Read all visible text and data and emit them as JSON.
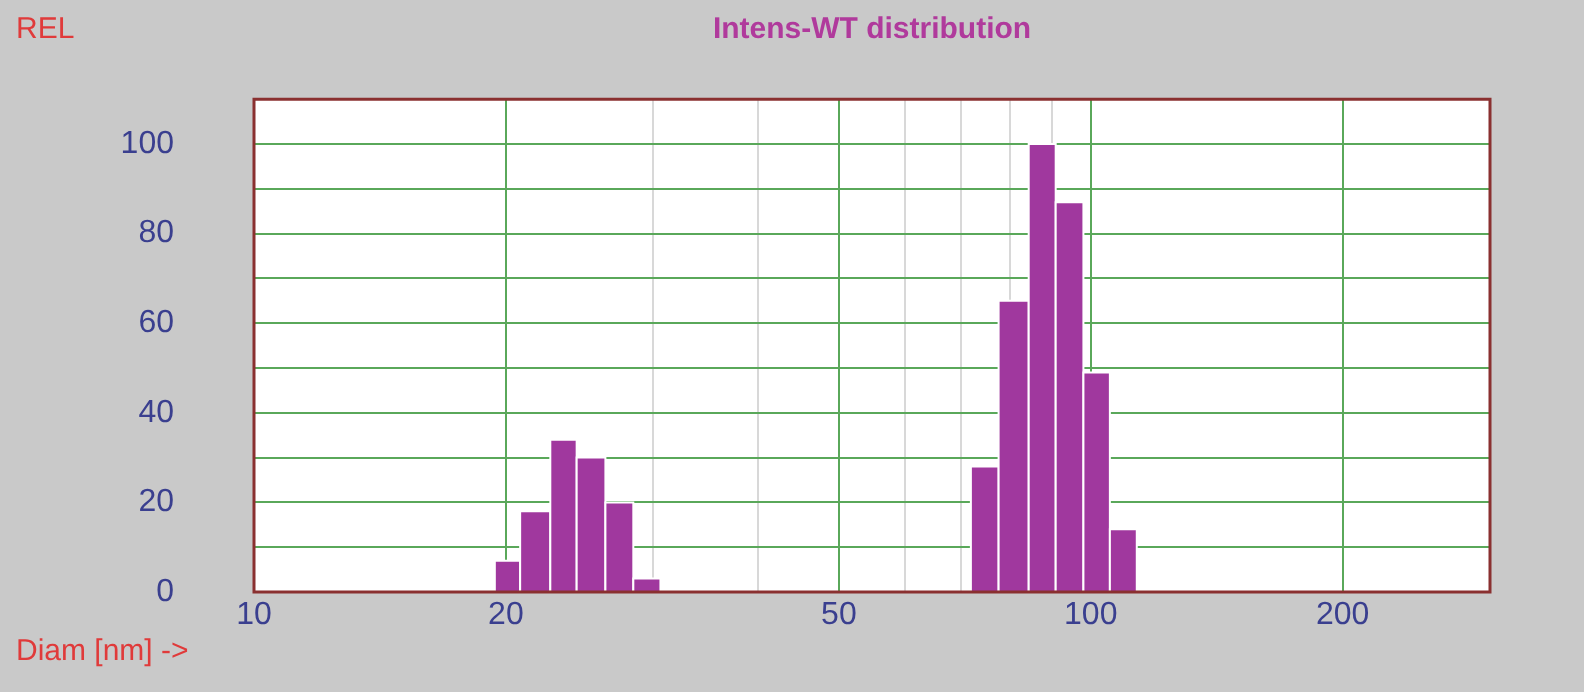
{
  "chart_data": {
    "type": "histogram",
    "title": "Intens-WT distribution",
    "xlabel": "Diam [nm] ->",
    "ylabel": "REL",
    "bins": [
      19.4,
      20.8,
      22.6,
      24.3,
      26.3,
      28.4,
      30.6,
      71.9,
      77.6,
      84.3,
      90.8,
      98,
      105.4,
      113.5
    ],
    "values": [
      7,
      18,
      34,
      30,
      20,
      3,
      0,
      28,
      65,
      100,
      87,
      49,
      14
    ],
    "color": "#a0389e",
    "log": "x",
    "xlim": [
      10,
      300
    ],
    "xticks": [
      10,
      20,
      {
        "value": 30,
        "label": null
      },
      {
        "value": 40,
        "label": null
      },
      50,
      {
        "value": 60,
        "label": null
      },
      {
        "value": 70,
        "label": null
      },
      {
        "value": 80,
        "label": null
      },
      {
        "value": 90,
        "label": null
      },
      100,
      200
    ],
    "ylim": [
      0,
      110
    ],
    "yticks": [
      0,
      {
        "value": 10,
        "label": null
      },
      20,
      {
        "value": 30,
        "label": null
      },
      40,
      {
        "value": 50,
        "label": null
      },
      60,
      {
        "value": 70,
        "label": null
      },
      80,
      {
        "value": 90,
        "label": null
      },
      100
    ],
    "grid": true,
    "legend": false
  }
}
